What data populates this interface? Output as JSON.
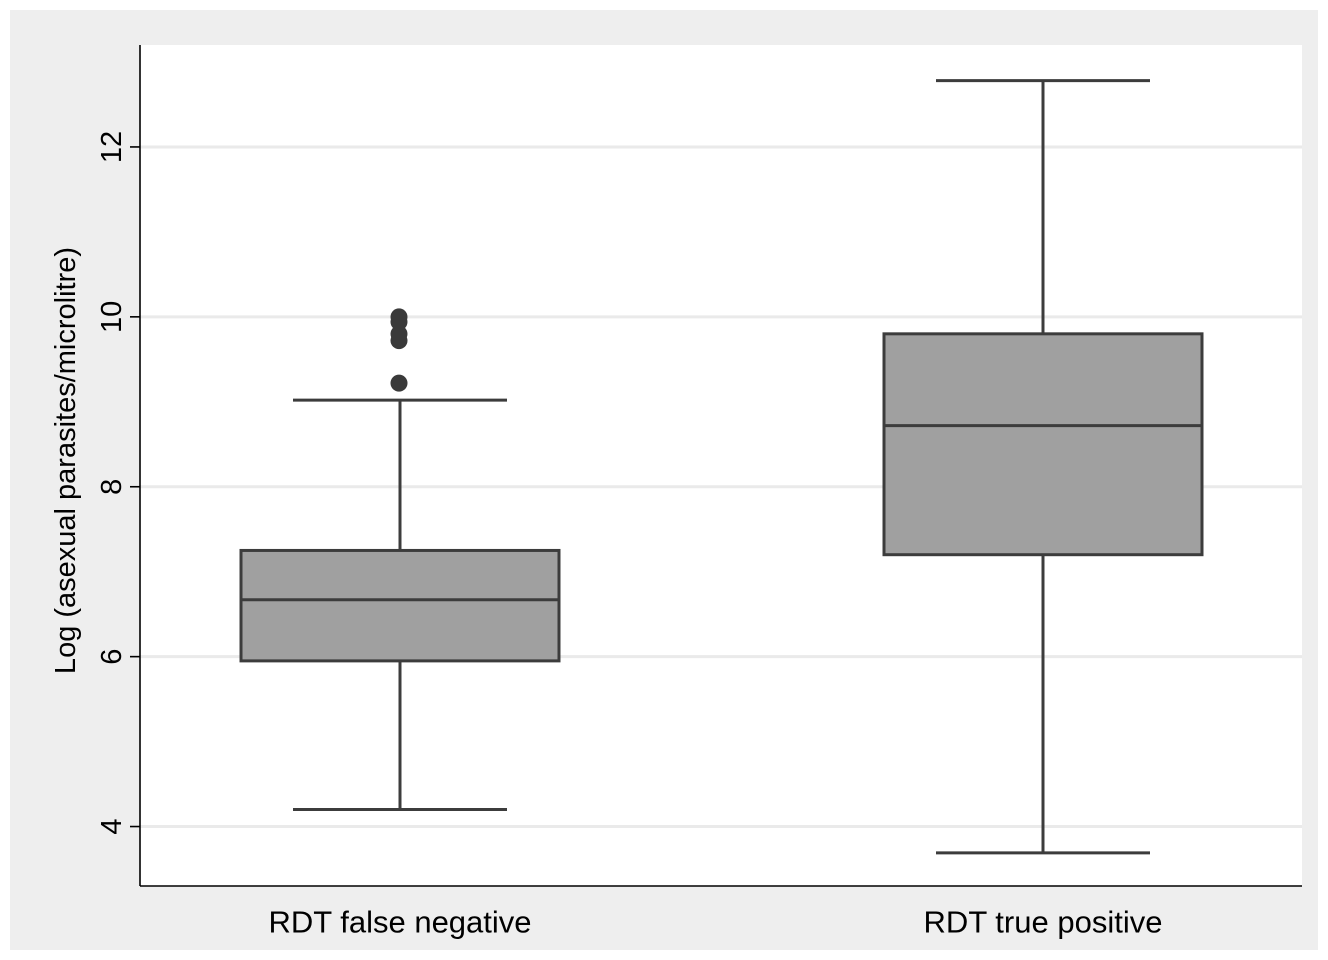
{
  "chart_data": {
    "type": "box",
    "title": "",
    "xlabel": "",
    "ylabel": "Log (asexual parasites/microlitre)",
    "categories": [
      "RDT false negative",
      "RDT true positive"
    ],
    "yticks": [
      4,
      6,
      8,
      10,
      12
    ],
    "ylim": [
      3.3,
      13.2
    ],
    "grid": true,
    "boxes": [
      {
        "category": "RDT false negative",
        "whisker_low": 4.2,
        "q1": 5.95,
        "median": 6.67,
        "q3": 7.25,
        "whisker_high": 9.02,
        "outliers": [
          9.22,
          9.72,
          9.8,
          9.94,
          10.0
        ]
      },
      {
        "category": "RDT true positive",
        "whisker_low": 3.69,
        "q1": 7.2,
        "median": 8.72,
        "q3": 9.8,
        "whisker_high": 12.78,
        "outliers": []
      }
    ],
    "colors": {
      "outer_background": "#eeeeee",
      "plot_background": "#ffffff",
      "gridline": "#eaeaea",
      "box_fill": "#a0a0a0",
      "box_stroke": "#3c3c3c",
      "outlier": "#3a3a3a"
    }
  }
}
